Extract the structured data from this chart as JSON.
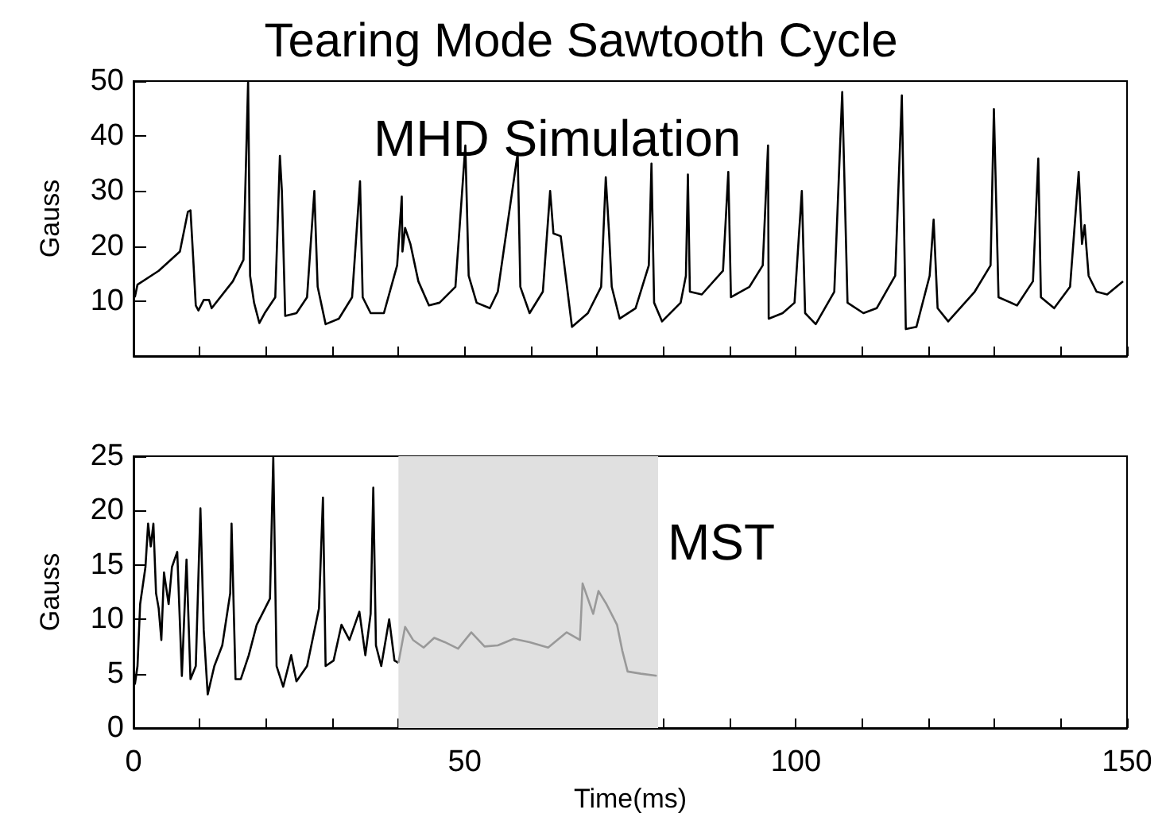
{
  "chart_data": [
    {
      "type": "line",
      "title": "Tearing Mode Sawtooth Cycle",
      "ylabel": "Gauss",
      "annotations": [
        "MHD Simulation"
      ],
      "xlim": [
        0,
        150
      ],
      "xticks": [
        0,
        10,
        20,
        30,
        40,
        50,
        60,
        70,
        80,
        90,
        100,
        110,
        120,
        130,
        140,
        150
      ],
      "ylim": [
        0,
        50
      ],
      "yticks": [
        10,
        20,
        30,
        40,
        50
      ],
      "tick_labels": "y",
      "grid": false,
      "series": [
        {
          "color": "#000000",
          "x": [
            0.2,
            0.6,
            3.8,
            7,
            8.2,
            8.6,
            9,
            9.4,
            9.8,
            10.6,
            11.4,
            11.8,
            15,
            16.6,
            17.3,
            17.6,
            18.2,
            19,
            19.8,
            21.4,
            22.1,
            22.4,
            22.9,
            24.6,
            26.2,
            27.3,
            27.8,
            29,
            31,
            33,
            34.2,
            34.6,
            35.8,
            37.8,
            39.8,
            40.5,
            40.6,
            41,
            41.8,
            43,
            44.6,
            46.2,
            48.6,
            50.1,
            50.6,
            51.8,
            53.8,
            55,
            58,
            58.4,
            59.8,
            61.8,
            62.9,
            63.4,
            64.5,
            66.2,
            68.6,
            70.6,
            71.3,
            71.8,
            72.2,
            73.4,
            75.8,
            77.8,
            78.2,
            78.6,
            79.8,
            82.6,
            83.4,
            83.7,
            84,
            85.8,
            89,
            89.8,
            90.2,
            93,
            95,
            95.8,
            95.9,
            98,
            99.8,
            100.9,
            101.4,
            103,
            105.8,
            107,
            107.8,
            110.2,
            112.2,
            115,
            116,
            116.6,
            118.2,
            120.2,
            120.8,
            121.4,
            123,
            127,
            129.4,
            129.9,
            130.6,
            133.4,
            135.8,
            136.6,
            137,
            139,
            141.4,
            142.7,
            143.2,
            143.6,
            144.2,
            145.4,
            147,
            149.4
          ],
          "values": [
            10.7,
            13,
            15.5,
            19,
            26.2,
            26.5,
            18,
            9.2,
            8.3,
            10.2,
            10.2,
            8.7,
            13.6,
            17.5,
            50,
            14.6,
            9.7,
            6,
            7.8,
            10.7,
            36.4,
            30,
            7.3,
            7.8,
            10.7,
            30,
            12.6,
            5.8,
            6.8,
            10.7,
            31.8,
            10.7,
            7.8,
            7.8,
            16.5,
            29,
            19,
            23.3,
            20.4,
            13.6,
            9.2,
            9.7,
            12.6,
            38.3,
            14.6,
            9.7,
            8.7,
            11.7,
            36.9,
            12.6,
            7.8,
            11.7,
            30,
            22.3,
            21.8,
            5.3,
            7.8,
            12.6,
            32.5,
            22.3,
            12.6,
            6.8,
            8.7,
            16.5,
            35,
            9.7,
            6.3,
            9.7,
            14.6,
            33,
            11.7,
            11.2,
            15.5,
            33.5,
            10.7,
            12.6,
            16.5,
            38.3,
            6.8,
            7.8,
            9.7,
            30,
            7.8,
            5.8,
            11.7,
            48,
            9.7,
            7.8,
            8.7,
            14.6,
            47.4,
            4.9,
            5.3,
            14.6,
            24.8,
            8.7,
            6.3,
            11.7,
            16.5,
            44.9,
            10.7,
            9.2,
            13.6,
            35.9,
            10.7,
            8.7,
            12.6,
            33.5,
            20.4,
            23.8,
            14.6,
            11.7,
            11.2,
            13.6
          ]
        }
      ]
    },
    {
      "type": "line",
      "xlabel": "Time(ms)",
      "ylabel": "Gauss",
      "annotations": [
        "MST"
      ],
      "xlim": [
        0,
        150
      ],
      "xticks": [
        0,
        {
          "value": 10,
          "label": null
        },
        {
          "value": 20,
          "label": null
        },
        {
          "value": 30,
          "label": null
        },
        {
          "value": 40,
          "label": null
        },
        50,
        {
          "value": 60,
          "label": null
        },
        {
          "value": 70,
          "label": null
        },
        {
          "value": 80,
          "label": null
        },
        {
          "value": 90,
          "label": null
        },
        100,
        {
          "value": 110,
          "label": null
        },
        {
          "value": 120,
          "label": null
        },
        {
          "value": 130,
          "label": null
        },
        {
          "value": 140,
          "label": null
        },
        150
      ],
      "ylim": [
        0,
        25
      ],
      "yticks": [
        0,
        5,
        10,
        15,
        20,
        25
      ],
      "grid": false,
      "bands": [
        {
          "axis": "x",
          "from": 40,
          "to": 79.2,
          "color": "#e0e0e0"
        }
      ],
      "series": [
        {
          "color": "#000000",
          "x": [
            0.2,
            0.6,
            1,
            1.8,
            2.2,
            2.6,
            3,
            3.4,
            3.8,
            4.2,
            4.6,
            5.3,
            5.8,
            6.6,
            7.3,
            8,
            8.6,
            9.4,
            10.1,
            10.6,
            11.2,
            12.2,
            13.4,
            14.6,
            14.8,
            15.4,
            16.2,
            17.4,
            18.6,
            20.6,
            21.1,
            21.6,
            22.6,
            23.8,
            24.6,
            26.2,
            28,
            28.6,
            29,
            30.2,
            31.4,
            32.6,
            34.1,
            35,
            35.8,
            36.2,
            36.6,
            37.4,
            38.6,
            39.4,
            40
          ],
          "values": [
            4,
            5.7,
            11.4,
            14.8,
            18.8,
            16.7,
            18.8,
            12.4,
            11,
            8.1,
            14.3,
            11.4,
            14.8,
            16.2,
            4.8,
            15.5,
            4.5,
            5.7,
            20.2,
            9,
            3.1,
            5.7,
            7.6,
            12.4,
            18.8,
            4.5,
            4.5,
            6.7,
            9.5,
            11.9,
            24.9,
            5.7,
            3.8,
            6.7,
            4.3,
            5.7,
            11,
            21.2,
            5.7,
            6.2,
            9.5,
            8.1,
            10.7,
            6.7,
            10.5,
            22.1,
            7.6,
            5.7,
            10,
            6.2,
            6
          ]
        },
        {
          "color": "#999999",
          "x": [
            40,
            41,
            42.2,
            43.8,
            45.4,
            47,
            49,
            51,
            53,
            55,
            57.4,
            59.8,
            62.6,
            65.4,
            67.4,
            67.8,
            68.6,
            69.4,
            70.2,
            71.4,
            73,
            73.8,
            74.6,
            76.6,
            79
          ],
          "values": [
            6,
            9.3,
            8.1,
            7.4,
            8.3,
            7.9,
            7.3,
            8.8,
            7.5,
            7.6,
            8.2,
            7.9,
            7.4,
            8.8,
            8.1,
            13.3,
            11.9,
            10.5,
            12.6,
            11.4,
            9.5,
            7.1,
            5.2,
            5,
            4.8
          ]
        }
      ]
    }
  ]
}
